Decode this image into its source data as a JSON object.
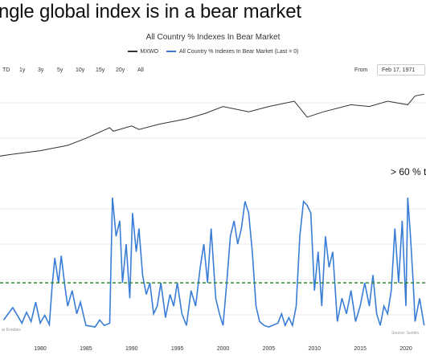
{
  "headline": "ngle global index is in a bear market",
  "title": "All Country % Indexes In Bear Market",
  "legend": [
    {
      "name": "MXWO",
      "color": "#333333"
    },
    {
      "name": "All Country % Indexes In Bear Market (Last = 0)",
      "color": "#3a7dd6"
    }
  ],
  "range_buttons": [
    "TD",
    "1y",
    "3y",
    "5y",
    "10y",
    "15y",
    "20y",
    "All"
  ],
  "from": {
    "label": "From",
    "value": "Feb 17, 1971"
  },
  "annotation": "> 60 % t",
  "source": "Source: Sentim",
  "watermark": "ar Enables",
  "colors": {
    "mxwo": "#333333",
    "bear": "#3a7dd6",
    "threshold": "#2e8b2e"
  },
  "chart_data": [
    {
      "type": "line",
      "title": "All Country % Indexes In Bear Market",
      "series": [
        {
          "name": "MXWO",
          "x": [
            1971,
            1973,
            1975,
            1977,
            1980,
            1983,
            1985,
            1987.6,
            1988,
            1990,
            1990.8,
            1993,
            1996,
            1998,
            2000,
            2002.8,
            2005,
            2007.8,
            2009.2,
            2011,
            2014,
            2016,
            2018,
            2020.2,
            2021,
            2022
          ],
          "values": [
            0.08,
            0.1,
            0.07,
            0.1,
            0.14,
            0.2,
            0.28,
            0.4,
            0.36,
            0.42,
            0.38,
            0.44,
            0.5,
            0.56,
            0.64,
            0.58,
            0.64,
            0.7,
            0.52,
            0.58,
            0.66,
            0.64,
            0.7,
            0.66,
            0.76,
            0.78
          ]
        }
      ],
      "x_range": [
        1971,
        2022
      ],
      "y_relative": true
    },
    {
      "type": "area",
      "series": [
        {
          "name": "All Country % Indexes In Bear Market (Last = 0)",
          "x": [
            1976,
            1977,
            1978,
            1978.5,
            1979,
            1979.5,
            1980,
            1980.5,
            1981,
            1981.3,
            1981.6,
            1982,
            1982.3,
            1982.7,
            1983,
            1983.5,
            1984,
            1984.4,
            1984.8,
            1985,
            1986,
            1986.5,
            1987,
            1987.6,
            1987.9,
            1988.3,
            1988.7,
            1989,
            1989.4,
            1989.8,
            1990.1,
            1990.5,
            1990.8,
            1991.2,
            1991.6,
            1992,
            1992.4,
            1992.8,
            1993.2,
            1993.7,
            1994.2,
            1994.6,
            1995,
            1995.5,
            1996,
            1996.5,
            1997,
            1997.5,
            1997.9,
            1998.3,
            1998.7,
            1999.2,
            1999.6,
            2000,
            2000.4,
            2000.8,
            2001.2,
            2001.6,
            2002,
            2002.4,
            2002.8,
            2003.2,
            2003.6,
            2004,
            2004.5,
            2005,
            2006,
            2006.4,
            2006.8,
            2007.2,
            2007.6,
            2008,
            2008.4,
            2008.8,
            2009.2,
            2009.6,
            2010,
            2010.4,
            2010.8,
            2011.2,
            2011.6,
            2012,
            2012.5,
            2013,
            2013.5,
            2014,
            2014.5,
            2015,
            2015.5,
            2016,
            2016.4,
            2016.8,
            2017.2,
            2017.6,
            2018,
            2018.4,
            2018.8,
            2019.2,
            2019.6,
            2020,
            2020.2,
            2020.5,
            2020.8,
            2021,
            2021.5,
            2022
          ],
          "values": [
            12,
            28,
            8,
            22,
            10,
            35,
            8,
            18,
            6,
            55,
            92,
            60,
            95,
            55,
            30,
            50,
            20,
            35,
            15,
            5,
            3,
            12,
            5,
            8,
            170,
            120,
            140,
            60,
            110,
            40,
            150,
            100,
            130,
            70,
            45,
            60,
            20,
            30,
            60,
            15,
            45,
            30,
            60,
            20,
            5,
            50,
            30,
            80,
            110,
            60,
            130,
            40,
            20,
            5,
            60,
            120,
            140,
            110,
            130,
            165,
            150,
            100,
            30,
            10,
            5,
            3,
            8,
            20,
            5,
            15,
            5,
            30,
            120,
            165,
            160,
            150,
            50,
            100,
            30,
            120,
            80,
            100,
            10,
            40,
            20,
            50,
            10,
            30,
            60,
            30,
            70,
            20,
            5,
            30,
            20,
            50,
            130,
            60,
            140,
            30,
            170,
            120,
            60,
            10,
            40,
            5
          ]
        }
      ],
      "threshold": 60,
      "x_range": [
        1971,
        2022
      ],
      "xticks": [
        "1980",
        "1985",
        "1990",
        "1995",
        "2000",
        "2005",
        "2010",
        "2015",
        "2020"
      ]
    }
  ]
}
